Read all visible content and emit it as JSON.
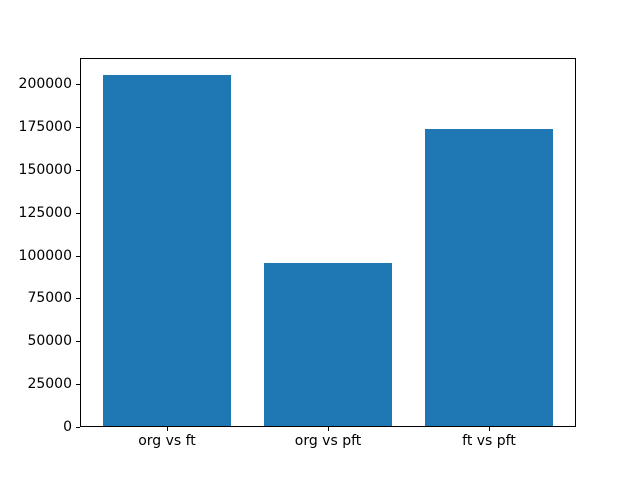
{
  "figure": {
    "background_color": "#ffffff",
    "axes_edge_color": "#000000",
    "tick_label_color": "#000000"
  },
  "chart_data": {
    "type": "bar",
    "categories": [
      "org vs ft",
      "org vs pft",
      "ft vs pft"
    ],
    "values": [
      205000,
      95000,
      173000
    ],
    "bar_color": "#1f77b4",
    "title": "",
    "xlabel": "",
    "ylabel": "",
    "ylim": [
      0,
      215250
    ],
    "yticks": [
      0,
      25000,
      50000,
      75000,
      100000,
      125000,
      150000,
      175000,
      200000
    ],
    "grid": false,
    "legend_position": "none"
  }
}
